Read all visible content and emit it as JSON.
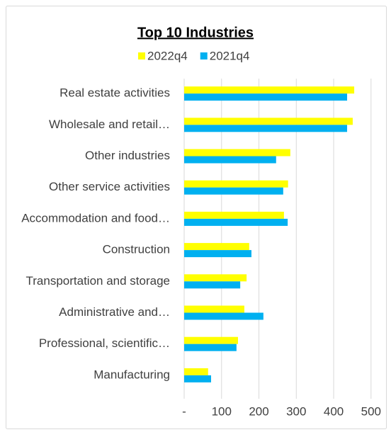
{
  "chart_data": {
    "type": "bar",
    "orientation": "horizontal",
    "title": "Top 10 Industries",
    "categories": [
      "Real estate activities",
      "Wholesale and retail…",
      "Other industries",
      "Other service activities",
      "Accommodation and food…",
      "Construction",
      "Transportation and storage",
      "Administrative and…",
      "Professional, scientific…",
      "Manufacturing"
    ],
    "series": [
      {
        "name": "2022q4",
        "color": "#ffff00",
        "values": [
          455,
          451,
          284,
          278,
          267,
          174,
          167,
          161,
          144,
          64
        ]
      },
      {
        "name": "2021q4",
        "color": "#00b0f0",
        "values": [
          436,
          436,
          246,
          265,
          277,
          180,
          150,
          212,
          140,
          72
        ]
      }
    ],
    "xlim": [
      0,
      525
    ],
    "xticks": [
      {
        "value": 0,
        "label": "-"
      },
      100,
      200,
      300,
      400,
      500
    ],
    "grid": true,
    "legend": "top"
  }
}
